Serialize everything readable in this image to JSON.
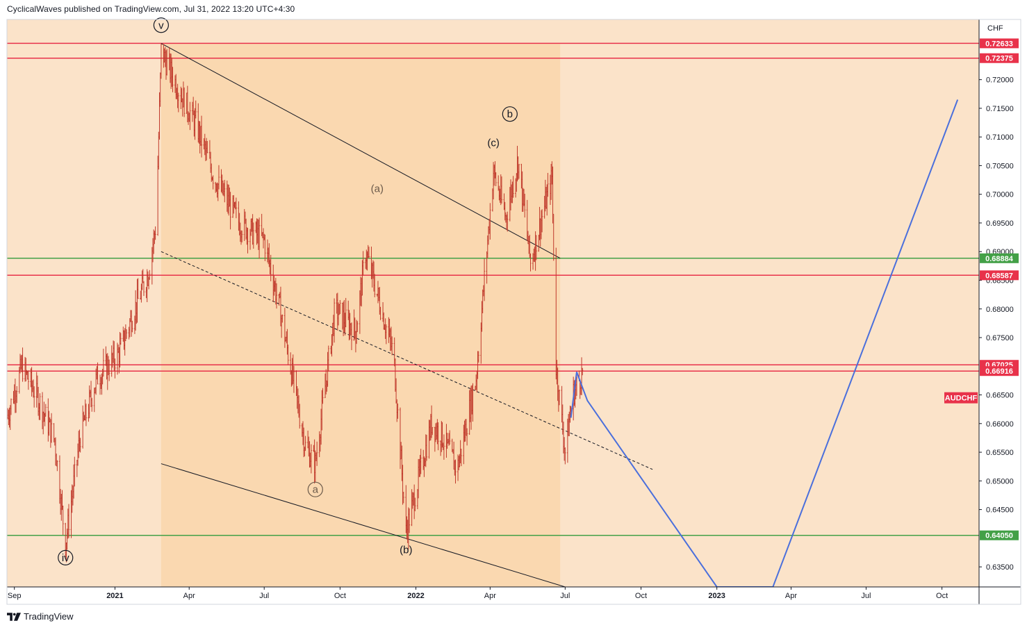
{
  "header": {
    "published": "CyclicalWaves published on TradingView.com, Jul 31, 2022 13:20 UTC+4:30"
  },
  "footer": {
    "brand": "TradingView"
  },
  "colors": {
    "background_plot": "#fbe3c9",
    "channel_fill": "#fad8b0",
    "candle": "#c0392b",
    "red_level": "#e8324a",
    "green_level": "#43a047",
    "projection": "#4a6fdc",
    "channel_line": "#131722"
  },
  "chart_data": {
    "type": "candlestick",
    "symbol": "AUDCHF",
    "currency_label": "CHF",
    "x_axis": {
      "ticks": [
        "Sep",
        "2021",
        "Apr",
        "Jul",
        "Oct",
        "2022",
        "Apr",
        "Jul",
        "Oct",
        "2023",
        "Apr",
        "Jul",
        "Oct"
      ],
      "tick_dates": [
        "2020-09",
        "2021-01",
        "2021-04",
        "2021-07",
        "2021-10",
        "2022-01",
        "2022-04",
        "2022-07",
        "2022-10",
        "2023-01",
        "2023-04",
        "2023-07",
        "2023-10"
      ],
      "range": [
        "2020-08-23",
        "2023-11-15"
      ]
    },
    "y_axis": {
      "ticks": [
        "0.72000",
        "0.71500",
        "0.71000",
        "0.70500",
        "0.70000",
        "0.69500",
        "0.69000",
        "0.68500",
        "0.68000",
        "0.67500",
        "0.66500",
        "0.66000",
        "0.65500",
        "0.65000",
        "0.64500",
        "0.63500"
      ],
      "range": [
        0.6315,
        0.7305
      ]
    },
    "horizontal_levels": [
      {
        "value": 0.72633,
        "label": "0.72633",
        "color": "red"
      },
      {
        "value": 0.72375,
        "label": "0.72375",
        "color": "red"
      },
      {
        "value": 0.68884,
        "label": "0.68884",
        "color": "green"
      },
      {
        "value": 0.68587,
        "label": "0.68587",
        "color": "red"
      },
      {
        "value": 0.67025,
        "label": "0.67025",
        "color": "red"
      },
      {
        "value": 0.66916,
        "label": "0.66916",
        "color": "red"
      },
      {
        "value": 0.6405,
        "label": "0.64050",
        "color": "green"
      }
    ],
    "price_path": [
      [
        "2020-08-23",
        0.661
      ],
      [
        "2020-09-10",
        0.67
      ],
      [
        "2020-10-01",
        0.664
      ],
      [
        "2020-10-20",
        0.657
      ],
      [
        "2020-11-02",
        0.639
      ],
      [
        "2020-11-20",
        0.658
      ],
      [
        "2020-12-10",
        0.668
      ],
      [
        "2021-01-05",
        0.672
      ],
      [
        "2021-01-25",
        0.68
      ],
      [
        "2021-02-10",
        0.686
      ],
      [
        "2021-02-20",
        0.695
      ],
      [
        "2021-02-26",
        0.725
      ],
      [
        "2021-03-20",
        0.718
      ],
      [
        "2021-04-10",
        0.712
      ],
      [
        "2021-05-01",
        0.703
      ],
      [
        "2021-06-01",
        0.695
      ],
      [
        "2021-07-01",
        0.692
      ],
      [
        "2021-07-20",
        0.68
      ],
      [
        "2021-08-20",
        0.656
      ],
      [
        "2021-09-01",
        0.653
      ],
      [
        "2021-09-25",
        0.68
      ],
      [
        "2021-10-20",
        0.676
      ],
      [
        "2021-11-01",
        0.69
      ],
      [
        "2021-11-20",
        0.68
      ],
      [
        "2021-12-05",
        0.672
      ],
      [
        "2021-12-20",
        0.641
      ],
      [
        "2022-01-20",
        0.66
      ],
      [
        "2022-02-01",
        0.658
      ],
      [
        "2022-02-20",
        0.652
      ],
      [
        "2022-03-15",
        0.668
      ],
      [
        "2022-04-05",
        0.704
      ],
      [
        "2022-04-20",
        0.696
      ],
      [
        "2022-05-05",
        0.706
      ],
      [
        "2022-05-20",
        0.688
      ],
      [
        "2022-06-01",
        0.695
      ],
      [
        "2022-06-15",
        0.703
      ],
      [
        "2022-06-20",
        0.67
      ],
      [
        "2022-07-01",
        0.655
      ],
      [
        "2022-07-10",
        0.665
      ],
      [
        "2022-07-25",
        0.67
      ]
    ],
    "channel": {
      "upper": [
        [
          "2021-02-26",
          0.72633
        ],
        [
          "2022-06-25",
          0.68884
        ]
      ],
      "mid": [
        [
          "2021-02-26",
          0.69
        ],
        [
          "2022-10-15",
          0.652
        ]
      ],
      "lower": [
        [
          "2021-02-26",
          0.653
        ],
        [
          "2022-07-01",
          0.6315
        ]
      ],
      "box_end": "2022-06-25"
    },
    "projection": [
      [
        "2022-07-08",
        0.661
      ],
      [
        "2022-07-15",
        0.669
      ],
      [
        "2022-07-28",
        0.664
      ],
      [
        "2023-01-01",
        0.6315
      ],
      [
        "2023-03-10",
        0.6315
      ],
      [
        "2023-10-20",
        0.7165
      ]
    ],
    "wave_labels": [
      {
        "text": "v",
        "date": "2021-02-26",
        "value": 0.7295,
        "circled": true
      },
      {
        "text": "iv",
        "date": "2020-11-02",
        "value": 0.6366,
        "circled": true
      },
      {
        "text": "b",
        "date": "2022-04-25",
        "value": 0.714,
        "circled": true
      },
      {
        "text": "(c)",
        "date": "2022-04-05",
        "value": 0.709,
        "circled": false
      },
      {
        "text": "(a)",
        "date": "2021-11-15",
        "value": 0.701,
        "circled": false,
        "muted": true
      },
      {
        "text": "a",
        "date": "2021-09-01",
        "value": 0.6485,
        "circled": true,
        "muted": true
      },
      {
        "text": "(b)",
        "date": "2021-12-20",
        "value": 0.638,
        "circled": false
      }
    ]
  }
}
